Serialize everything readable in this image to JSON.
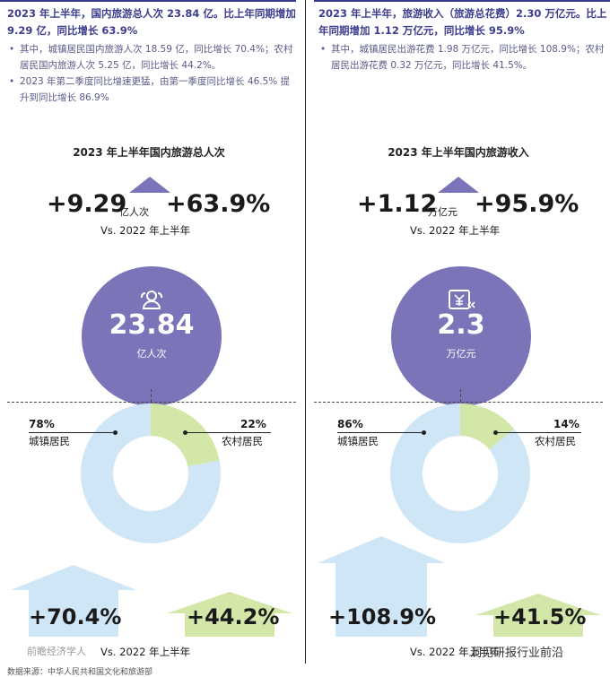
{
  "left": {
    "headline": "2023 年上半年，国内旅游总人次 23.84 亿。比上年同期增加 9.29 亿，同比增长 63.9%",
    "bullets": [
      "其中，城镇居民国内旅游人次 18.59 亿，同比增长 70.4%；农村居民国内旅游人次 5.25 亿，同比增长 44.2%。",
      "2023 年第二季度同比增速更猛，由第一季度同比增长 46.5% 提升到同比增长 86.9%"
    ],
    "section_title": "2023 年上半年国内旅游总人次",
    "increase": "+9.29",
    "increase_unit": "亿人次",
    "growth": "+63.9%",
    "vs_label": "Vs. 2022 年上半年",
    "circle_value": "23.84",
    "circle_unit": "亿人次",
    "circle_icon": "people-icon",
    "urban_pct": "78%",
    "urban_label": "城镇居民",
    "rural_pct": "22%",
    "rural_label": "农村居民",
    "urban_growth": "+70.4%",
    "rural_growth": "+44.2%",
    "bottom_vs": "Vs. 2022 年上半年"
  },
  "right": {
    "headline": "2023 年上半年，旅游收入（旅游总花费）2.30 万亿元。比上年同期增加 1.12 万亿元，同比增长 95.9%",
    "bullets": [
      "其中，城镇居民出游花费 1.98 万亿元，同比增长 108.9%；农村居民出游花费 0.32 万亿元，同比增长 41.5%。"
    ],
    "section_title": "2023 年上半年国内旅游收入",
    "increase": "+1.12",
    "increase_unit": "万亿元",
    "growth": "+95.9%",
    "vs_label": "Vs. 2022 年上半年",
    "circle_value": "2.3",
    "circle_unit": "万亿元",
    "circle_icon": "yen-bill-icon",
    "urban_pct": "86%",
    "urban_label": "城镇居民",
    "rural_pct": "14%",
    "rural_label": "农村居民",
    "urban_growth": "+108.9%",
    "rural_growth": "+41.5%",
    "bottom_vs": "Vs. 2022 年上半年"
  },
  "source": "数据来源：中华人民共和国文化和旅游部",
  "watermark_left": "前瞻经济学人",
  "watermark_right": "洞见研报行业前沿",
  "colors": {
    "purple": "#7b74b8",
    "urban": "#cfe6f7",
    "rural": "#d3e8a8",
    "headline": "#3d3d8f"
  },
  "chart_data": [
    {
      "type": "pie",
      "title": "2023 年上半年国内旅游总人次",
      "categories": [
        "城镇居民",
        "农村居民"
      ],
      "values": [
        78,
        22
      ],
      "total": 23.84,
      "unit": "亿人次",
      "colors": [
        "#cfe6f7",
        "#d3e8a8"
      ],
      "growth": {
        "城镇居民": 70.4,
        "农村居民": 44.2
      },
      "ylim": [
        0,
        80
      ]
    },
    {
      "type": "pie",
      "title": "2023 年上半年国内旅游收入",
      "categories": [
        "城镇居民",
        "农村居民"
      ],
      "values": [
        86,
        14
      ],
      "total": 2.3,
      "unit": "万亿元",
      "colors": [
        "#cfe6f7",
        "#d3e8a8"
      ],
      "growth": {
        "城镇居民": 108.9,
        "农村居民": 41.5
      },
      "ylim": [
        0,
        120
      ]
    }
  ]
}
